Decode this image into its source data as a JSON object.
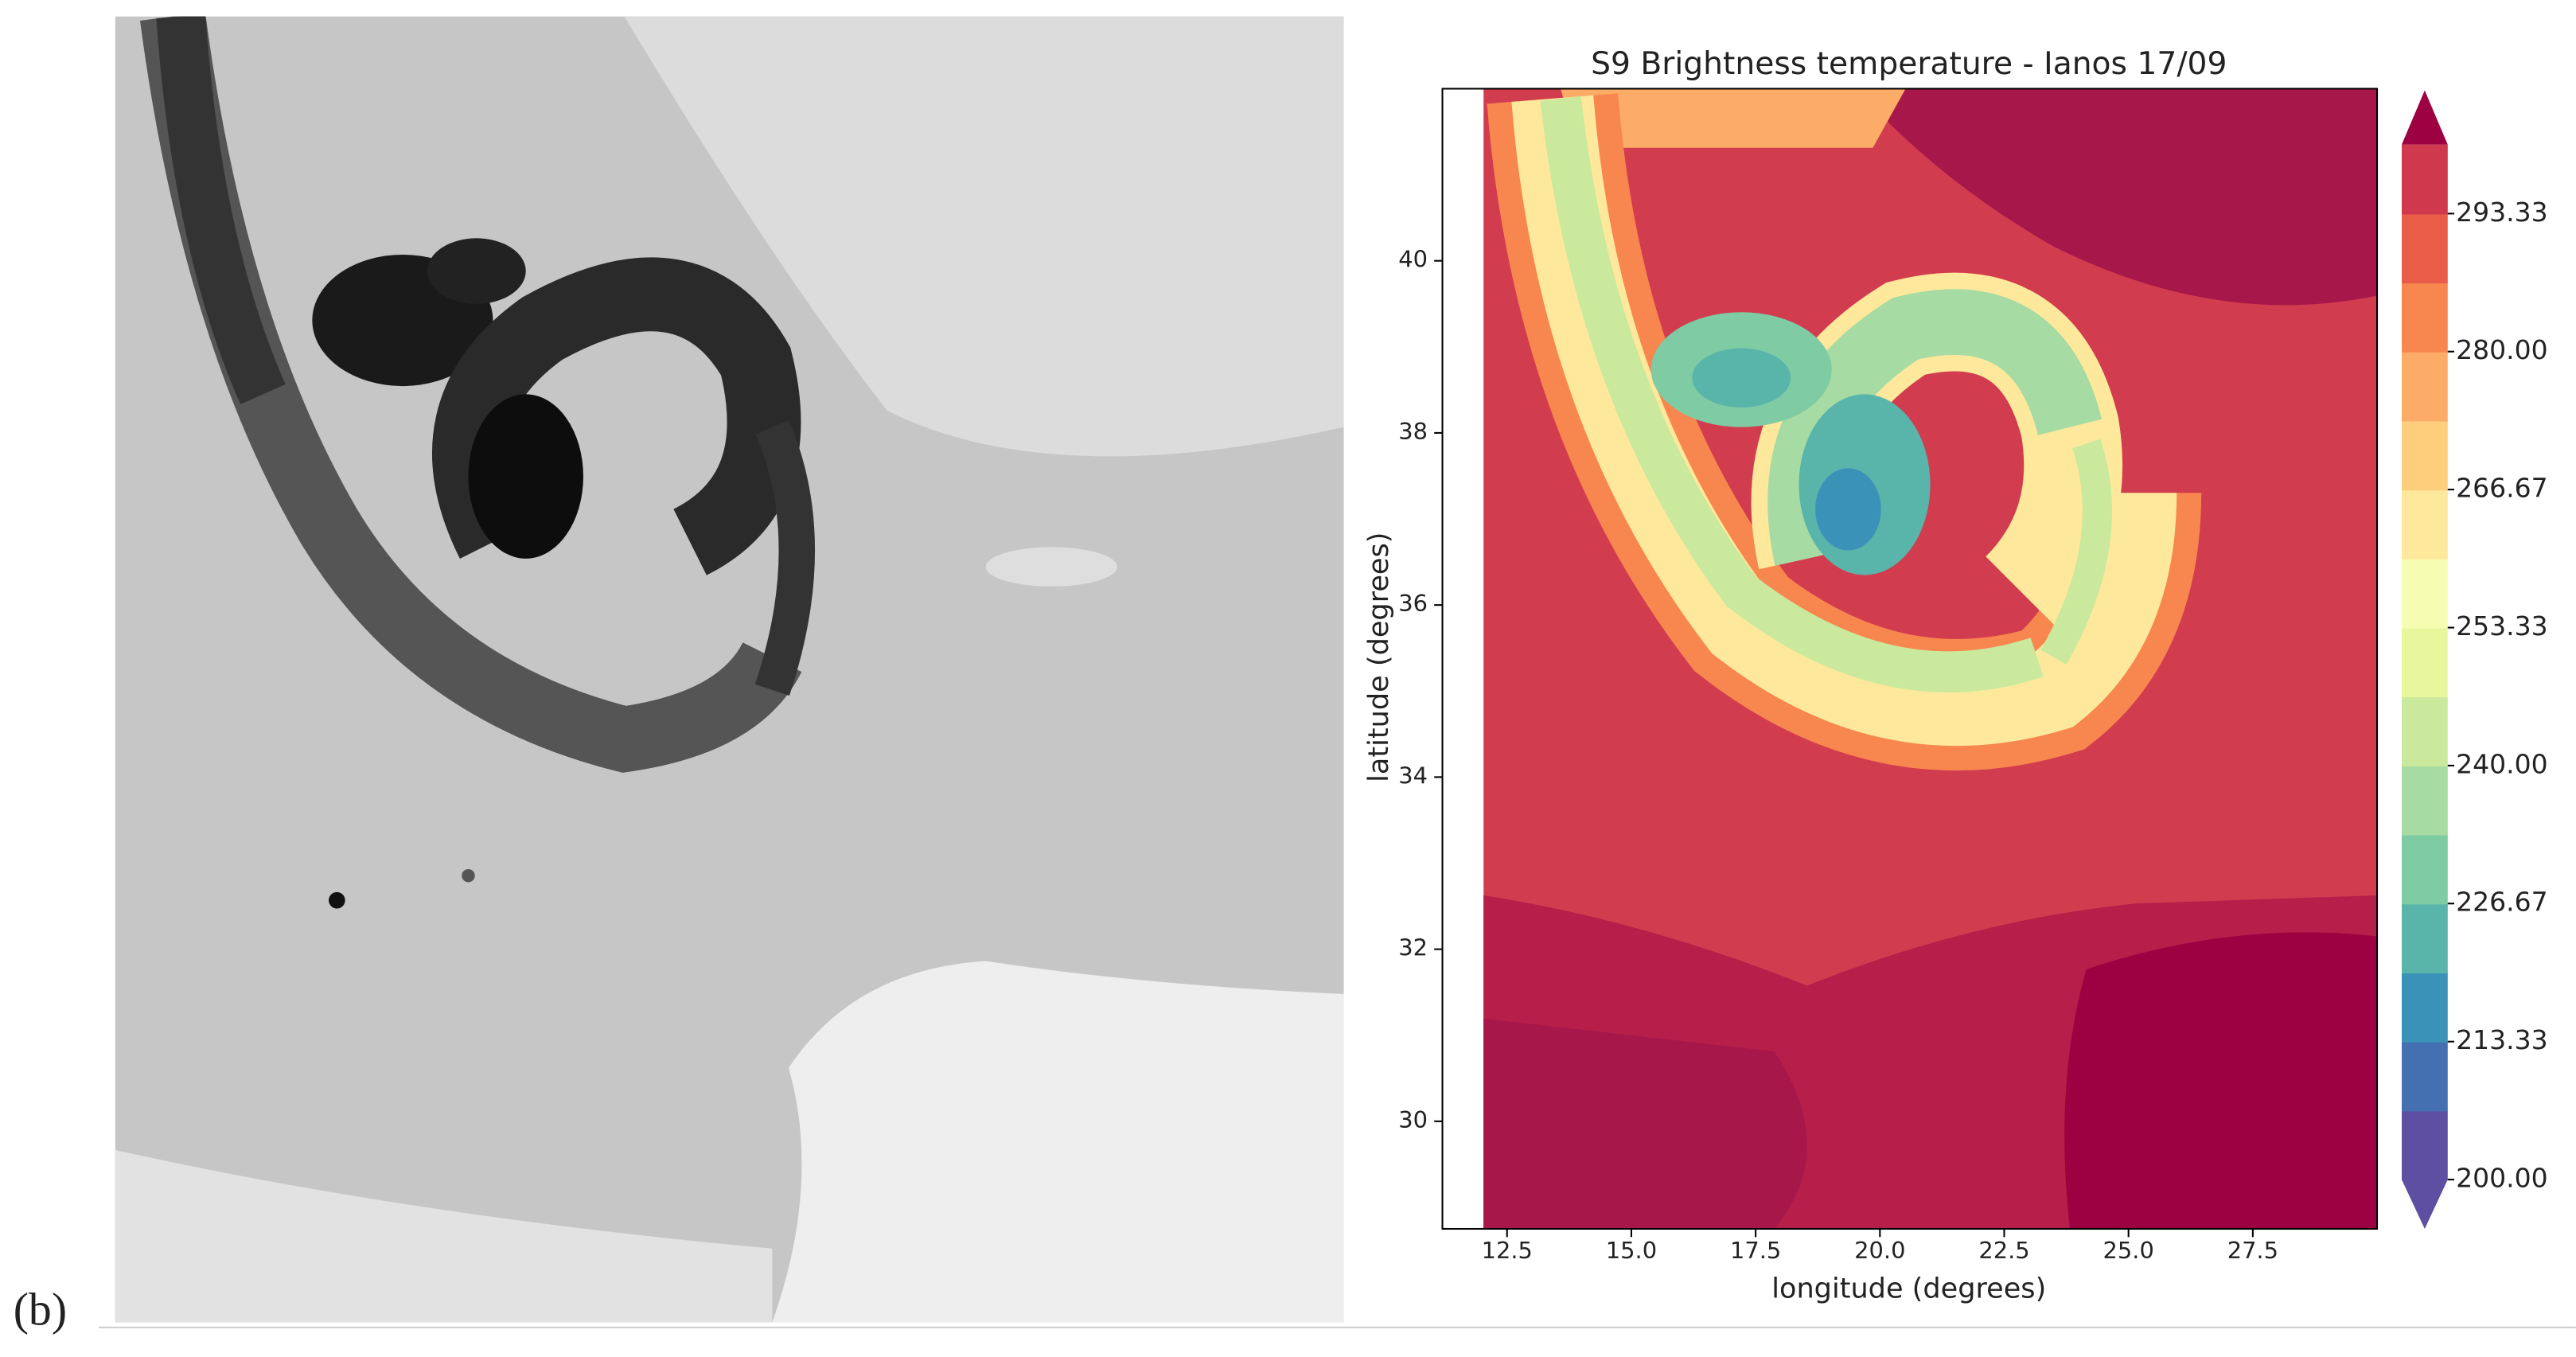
{
  "panel_label": "(b)",
  "chart_data": {
    "type": "map",
    "title": "S9 Brightness temperature - Ianos 17/09",
    "xlabel": "longitude (degrees)",
    "ylabel": "latitude (degrees)",
    "xlim": [
      11.2,
      30
    ],
    "ylim": [
      28.75,
      42
    ],
    "xticks": [
      12.5,
      {
        "value": 15,
        "label": "15.0"
      },
      17.5,
      {
        "value": 20,
        "label": "20.0"
      },
      22.5,
      {
        "value": 25,
        "label": "25.0"
      },
      27.5
    ],
    "yticks": [
      30,
      32,
      34,
      36,
      38,
      40
    ],
    "colorbar": {
      "lim": [
        200,
        300
      ],
      "ticks": [
        {
          "value": 200,
          "label": "200.00"
        },
        213.33,
        226.67,
        {
          "value": 240,
          "label": "240.00"
        },
        253.33,
        266.67,
        {
          "value": 280,
          "label": "280.00"
        },
        293.33
      ],
      "colors": [
        "#5e4fa2",
        "#4470b1",
        "#3b92b8",
        "#59b4aa",
        "#7ecba4",
        "#a6dba4",
        "#cae99d",
        "#e8f69c",
        "#f7fcb3",
        "#fee89b",
        "#fece7c",
        "#fdac67",
        "#f8864f",
        "#e95c47",
        "#cf384d"
      ],
      "extend_colors": [
        "#5e4fa2",
        "#9e0142"
      ]
    }
  }
}
